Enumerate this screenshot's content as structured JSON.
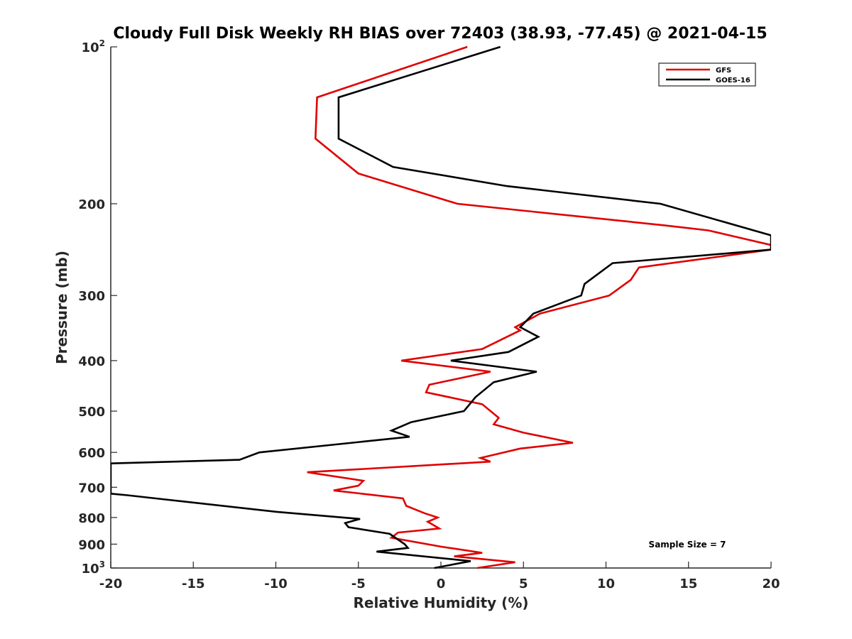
{
  "chart_data": {
    "type": "line",
    "title": "Cloudy Full Disk Weekly RH BIAS over 72403 (38.93, -77.45) @ 2021-04-15",
    "xlabel": "Relative Humidity (%)",
    "ylabel": "Pressure (mb)",
    "xlim": [
      -20,
      20
    ],
    "ylim": [
      100,
      1000
    ],
    "y_scale": "log",
    "y_reversed": true,
    "grid": false,
    "legend_position": "top-right",
    "annotation": "Sample Size = 7",
    "x_ticks": [
      {
        "value": -20,
        "label": "-20"
      },
      {
        "value": -15,
        "label": "-15"
      },
      {
        "value": -10,
        "label": "-10"
      },
      {
        "value": -5,
        "label": "-5"
      },
      {
        "value": 0,
        "label": "0"
      },
      {
        "value": 5,
        "label": "5"
      },
      {
        "value": 10,
        "label": "10"
      },
      {
        "value": 15,
        "label": "15"
      },
      {
        "value": 20,
        "label": "20"
      }
    ],
    "y_ticks": [
      {
        "value": 100,
        "label": "10",
        "sup": "2"
      },
      {
        "value": 200,
        "label": "200",
        "sup": ""
      },
      {
        "value": 300,
        "label": "300",
        "sup": ""
      },
      {
        "value": 400,
        "label": "400",
        "sup": ""
      },
      {
        "value": 500,
        "label": "500",
        "sup": ""
      },
      {
        "value": 600,
        "label": "600",
        "sup": ""
      },
      {
        "value": 700,
        "label": "700",
        "sup": ""
      },
      {
        "value": 800,
        "label": "800",
        "sup": ""
      },
      {
        "value": 900,
        "label": "900",
        "sup": ""
      },
      {
        "value": 1000,
        "label": "10",
        "sup": "3"
      }
    ],
    "series": [
      {
        "name": "GFS",
        "color": "#e00000",
        "points": [
          {
            "x": 1.6,
            "y": 100
          },
          {
            "x": -7.5,
            "y": 125
          },
          {
            "x": -7.6,
            "y": 150
          },
          {
            "x": -5.0,
            "y": 175
          },
          {
            "x": 1.0,
            "y": 200
          },
          {
            "x": 13.5,
            "y": 220
          },
          {
            "x": 16.2,
            "y": 225
          },
          {
            "x": 20,
            "y": 240
          },
          {
            "x": 20,
            "y": 245
          },
          {
            "x": 12.0,
            "y": 265
          },
          {
            "x": 11.5,
            "y": 280
          },
          {
            "x": 10.2,
            "y": 300
          },
          {
            "x": 6.0,
            "y": 325
          },
          {
            "x": 4.5,
            "y": 345
          },
          {
            "x": 4.8,
            "y": 350
          },
          {
            "x": 2.5,
            "y": 380
          },
          {
            "x": -2.4,
            "y": 400
          },
          {
            "x": 3.0,
            "y": 420
          },
          {
            "x": -0.7,
            "y": 445
          },
          {
            "x": -0.9,
            "y": 460
          },
          {
            "x": 2.5,
            "y": 485
          },
          {
            "x": 3.5,
            "y": 515
          },
          {
            "x": 3.2,
            "y": 530
          },
          {
            "x": 5.0,
            "y": 550
          },
          {
            "x": 8.0,
            "y": 575
          },
          {
            "x": 4.8,
            "y": 590
          },
          {
            "x": 2.4,
            "y": 615
          },
          {
            "x": 3.0,
            "y": 625
          },
          {
            "x": -8.1,
            "y": 655
          },
          {
            "x": -4.7,
            "y": 680
          },
          {
            "x": -5.0,
            "y": 695
          },
          {
            "x": -6.5,
            "y": 710
          },
          {
            "x": -2.3,
            "y": 735
          },
          {
            "x": -2.1,
            "y": 760
          },
          {
            "x": -1.0,
            "y": 785
          },
          {
            "x": -0.2,
            "y": 800
          },
          {
            "x": -0.8,
            "y": 815
          },
          {
            "x": -0.1,
            "y": 840
          },
          {
            "x": -2.6,
            "y": 855
          },
          {
            "x": -3.0,
            "y": 875
          },
          {
            "x": 0.0,
            "y": 910
          },
          {
            "x": 2.5,
            "y": 935
          },
          {
            "x": 0.8,
            "y": 950
          },
          {
            "x": 4.5,
            "y": 975
          },
          {
            "x": 2.2,
            "y": 1000
          }
        ]
      },
      {
        "name": "GOES-16",
        "color": "#000000",
        "points": [
          {
            "x": 3.6,
            "y": 100
          },
          {
            "x": -6.2,
            "y": 125
          },
          {
            "x": -6.2,
            "y": 150
          },
          {
            "x": -2.9,
            "y": 170
          },
          {
            "x": 4.0,
            "y": 185
          },
          {
            "x": 13.3,
            "y": 200
          },
          {
            "x": 20,
            "y": 230
          },
          {
            "x": 20,
            "y": 235
          },
          {
            "x": 20,
            "y": 245
          },
          {
            "x": 10.4,
            "y": 260
          },
          {
            "x": 8.7,
            "y": 285
          },
          {
            "x": 8.5,
            "y": 300
          },
          {
            "x": 5.6,
            "y": 325
          },
          {
            "x": 4.8,
            "y": 345
          },
          {
            "x": 5.9,
            "y": 360
          },
          {
            "x": 4.1,
            "y": 385
          },
          {
            "x": 0.6,
            "y": 400
          },
          {
            "x": 5.8,
            "y": 420
          },
          {
            "x": 3.2,
            "y": 440
          },
          {
            "x": 2.1,
            "y": 470
          },
          {
            "x": 1.4,
            "y": 500
          },
          {
            "x": -1.8,
            "y": 525
          },
          {
            "x": -3.0,
            "y": 545
          },
          {
            "x": -1.9,
            "y": 560
          },
          {
            "x": -11.0,
            "y": 600
          },
          {
            "x": -12.2,
            "y": 620
          },
          {
            "x": -20,
            "y": 630
          },
          {
            "x": -20,
            "y": 720
          },
          {
            "x": -19.0,
            "y": 725
          },
          {
            "x": -16.5,
            "y": 740
          },
          {
            "x": -10.0,
            "y": 780
          },
          {
            "x": -4.9,
            "y": 805
          },
          {
            "x": -5.8,
            "y": 820
          },
          {
            "x": -5.6,
            "y": 835
          },
          {
            "x": -3.1,
            "y": 860
          },
          {
            "x": -2.2,
            "y": 900
          },
          {
            "x": -2.0,
            "y": 915
          },
          {
            "x": -3.9,
            "y": 930
          },
          {
            "x": 1.8,
            "y": 970
          },
          {
            "x": -0.4,
            "y": 1000
          }
        ]
      }
    ]
  }
}
